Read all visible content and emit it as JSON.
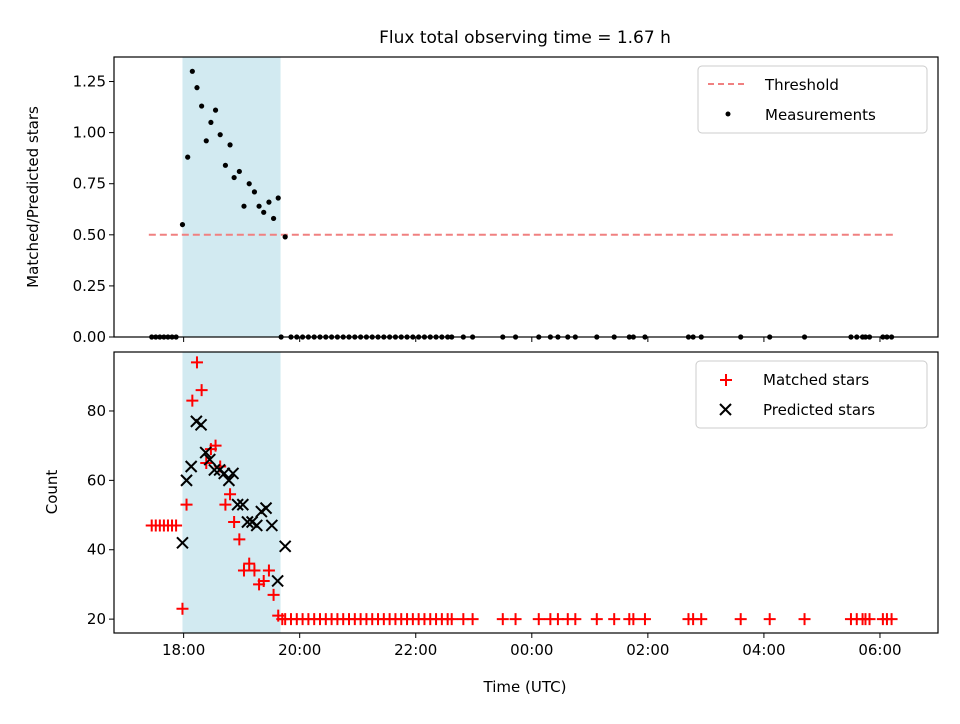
{
  "colors": {
    "threshold": "#f08080",
    "band": "#add8e6",
    "measurement": "#000000",
    "matched": "#ff0000",
    "predicted": "#000000"
  },
  "chart_data": [
    {
      "type": "scatter",
      "title": "Flux total observing time = 1.67 h",
      "xlabel": "",
      "ylabel": "Matched/Predicted stars",
      "x_unit": "hours since 00:00 UTC on the first night (values above 24 are after midnight)",
      "xlim": [
        16.8,
        31.0
      ],
      "ylim": [
        0,
        1.37
      ],
      "yticks": [
        0.0,
        0.25,
        0.5,
        0.75,
        1.0,
        1.25
      ],
      "ytick_labels": [
        "0.00",
        "0.25",
        "0.50",
        "0.75",
        "1.00",
        "1.25"
      ],
      "highlight_band": [
        17.98,
        19.67
      ],
      "legend": {
        "placement": "top-right",
        "entries": [
          "Threshold",
          "Measurements"
        ]
      },
      "series": [
        {
          "name": "Threshold",
          "kind": "dashed-line",
          "x": [
            17.4,
            30.25
          ],
          "y": [
            0.5,
            0.5
          ]
        },
        {
          "name": "Measurements",
          "kind": "dot",
          "points": [
            [
              17.45,
              0
            ],
            [
              17.52,
              0
            ],
            [
              17.59,
              0
            ],
            [
              17.66,
              0
            ],
            [
              17.73,
              0
            ],
            [
              17.8,
              0
            ],
            [
              17.87,
              0
            ],
            [
              17.98,
              0.55
            ],
            [
              18.07,
              0.88
            ],
            [
              18.15,
              1.3
            ],
            [
              18.23,
              1.22
            ],
            [
              18.31,
              1.13
            ],
            [
              18.39,
              0.96
            ],
            [
              18.47,
              1.05
            ],
            [
              18.55,
              1.11
            ],
            [
              18.63,
              0.99
            ],
            [
              18.72,
              0.84
            ],
            [
              18.8,
              0.94
            ],
            [
              18.87,
              0.78
            ],
            [
              18.96,
              0.81
            ],
            [
              19.04,
              0.64
            ],
            [
              19.13,
              0.75
            ],
            [
              19.22,
              0.71
            ],
            [
              19.3,
              0.64
            ],
            [
              19.38,
              0.61
            ],
            [
              19.47,
              0.66
            ],
            [
              19.55,
              0.58
            ],
            [
              19.63,
              0.68
            ],
            [
              19.75,
              0.49
            ],
            [
              19.68,
              0
            ],
            [
              19.85,
              0
            ],
            [
              19.95,
              0
            ],
            [
              20.05,
              0
            ],
            [
              20.15,
              0
            ],
            [
              20.25,
              0
            ],
            [
              20.35,
              0
            ],
            [
              20.45,
              0
            ],
            [
              20.55,
              0
            ],
            [
              20.65,
              0
            ],
            [
              20.75,
              0
            ],
            [
              20.85,
              0
            ],
            [
              20.95,
              0
            ],
            [
              21.05,
              0
            ],
            [
              21.15,
              0
            ],
            [
              21.25,
              0
            ],
            [
              21.35,
              0
            ],
            [
              21.45,
              0
            ],
            [
              21.55,
              0
            ],
            [
              21.65,
              0
            ],
            [
              21.75,
              0
            ],
            [
              21.85,
              0
            ],
            [
              21.95,
              0
            ],
            [
              22.05,
              0
            ],
            [
              22.15,
              0
            ],
            [
              22.25,
              0
            ],
            [
              22.35,
              0
            ],
            [
              22.45,
              0
            ],
            [
              22.55,
              0
            ],
            [
              22.62,
              0
            ],
            [
              22.82,
              0
            ],
            [
              22.98,
              0
            ],
            [
              23.5,
              0
            ],
            [
              23.72,
              0
            ],
            [
              24.12,
              0
            ],
            [
              24.32,
              0
            ],
            [
              24.45,
              0
            ],
            [
              24.62,
              0
            ],
            [
              24.75,
              0
            ],
            [
              25.12,
              0
            ],
            [
              25.42,
              0
            ],
            [
              25.68,
              0
            ],
            [
              25.75,
              0
            ],
            [
              25.95,
              0
            ],
            [
              26.7,
              0
            ],
            [
              26.78,
              0
            ],
            [
              26.92,
              0
            ],
            [
              27.6,
              0
            ],
            [
              28.1,
              0
            ],
            [
              28.7,
              0
            ],
            [
              29.5,
              0
            ],
            [
              29.6,
              0
            ],
            [
              29.7,
              0
            ],
            [
              29.75,
              0
            ],
            [
              29.82,
              0
            ],
            [
              30.05,
              0
            ],
            [
              30.12,
              0
            ],
            [
              30.2,
              0
            ]
          ]
        }
      ]
    },
    {
      "type": "scatter",
      "title": "",
      "xlabel": "Time (UTC)",
      "ylabel": "Count",
      "x_unit": "hours since 00:00 UTC on the first night (values above 24 are after midnight)",
      "xlim": [
        16.8,
        31.0
      ],
      "ylim": [
        16,
        97
      ],
      "xticks": [
        18,
        20,
        22,
        24,
        26,
        28,
        30
      ],
      "xtick_labels": [
        "18:00",
        "20:00",
        "22:00",
        "00:00",
        "02:00",
        "04:00",
        "06:00"
      ],
      "yticks": [
        20,
        40,
        60,
        80
      ],
      "ytick_labels": [
        "20",
        "40",
        "60",
        "80"
      ],
      "highlight_band": [
        17.98,
        19.67
      ],
      "legend": {
        "placement": "top-right",
        "entries": [
          "Matched stars",
          "Predicted stars"
        ]
      },
      "series": [
        {
          "name": "Matched stars",
          "marker": "plus",
          "points": [
            [
              17.45,
              47
            ],
            [
              17.52,
              47
            ],
            [
              17.59,
              47
            ],
            [
              17.66,
              47
            ],
            [
              17.73,
              47
            ],
            [
              17.8,
              47
            ],
            [
              17.87,
              47
            ],
            [
              17.98,
              23
            ],
            [
              18.05,
              53
            ],
            [
              18.15,
              83
            ],
            [
              18.23,
              94
            ],
            [
              18.31,
              86
            ],
            [
              18.39,
              65
            ],
            [
              18.47,
              69
            ],
            [
              18.55,
              70
            ],
            [
              18.63,
              64
            ],
            [
              18.72,
              53
            ],
            [
              18.8,
              56
            ],
            [
              18.87,
              48
            ],
            [
              18.96,
              43
            ],
            [
              19.04,
              34
            ],
            [
              19.13,
              36
            ],
            [
              19.22,
              34
            ],
            [
              19.3,
              30
            ],
            [
              19.38,
              31
            ],
            [
              19.47,
              34
            ],
            [
              19.55,
              27
            ],
            [
              19.63,
              21
            ],
            [
              19.7,
              20
            ],
            [
              19.75,
              20
            ],
            [
              19.85,
              20
            ],
            [
              19.95,
              20
            ],
            [
              20.05,
              20
            ],
            [
              20.15,
              20
            ],
            [
              20.25,
              20
            ],
            [
              20.35,
              20
            ],
            [
              20.45,
              20
            ],
            [
              20.55,
              20
            ],
            [
              20.65,
              20
            ],
            [
              20.75,
              20
            ],
            [
              20.85,
              20
            ],
            [
              20.95,
              20
            ],
            [
              21.05,
              20
            ],
            [
              21.15,
              20
            ],
            [
              21.25,
              20
            ],
            [
              21.35,
              20
            ],
            [
              21.45,
              20
            ],
            [
              21.55,
              20
            ],
            [
              21.65,
              20
            ],
            [
              21.75,
              20
            ],
            [
              21.85,
              20
            ],
            [
              21.95,
              20
            ],
            [
              22.05,
              20
            ],
            [
              22.15,
              20
            ],
            [
              22.25,
              20
            ],
            [
              22.35,
              20
            ],
            [
              22.45,
              20
            ],
            [
              22.55,
              20
            ],
            [
              22.62,
              20
            ],
            [
              22.82,
              20
            ],
            [
              22.98,
              20
            ],
            [
              23.5,
              20
            ],
            [
              23.72,
              20
            ],
            [
              24.12,
              20
            ],
            [
              24.32,
              20
            ],
            [
              24.45,
              20
            ],
            [
              24.62,
              20
            ],
            [
              24.75,
              20
            ],
            [
              25.12,
              20
            ],
            [
              25.42,
              20
            ],
            [
              25.68,
              20
            ],
            [
              25.75,
              20
            ],
            [
              25.95,
              20
            ],
            [
              26.7,
              20
            ],
            [
              26.78,
              20
            ],
            [
              26.92,
              20
            ],
            [
              27.6,
              20
            ],
            [
              28.1,
              20
            ],
            [
              28.7,
              20
            ],
            [
              29.5,
              20
            ],
            [
              29.6,
              20
            ],
            [
              29.7,
              20
            ],
            [
              29.75,
              20
            ],
            [
              29.82,
              20
            ],
            [
              30.05,
              20
            ],
            [
              30.12,
              20
            ],
            [
              30.2,
              20
            ]
          ]
        },
        {
          "name": "Predicted stars",
          "marker": "x",
          "points": [
            [
              17.98,
              42
            ],
            [
              18.05,
              60
            ],
            [
              18.13,
              64
            ],
            [
              18.22,
              77
            ],
            [
              18.3,
              76
            ],
            [
              18.38,
              68
            ],
            [
              18.45,
              66
            ],
            [
              18.53,
              63
            ],
            [
              18.62,
              63
            ],
            [
              18.7,
              62
            ],
            [
              18.78,
              60
            ],
            [
              18.85,
              62
            ],
            [
              18.93,
              53
            ],
            [
              19.02,
              53
            ],
            [
              19.1,
              48
            ],
            [
              19.18,
              48
            ],
            [
              19.26,
              47
            ],
            [
              19.34,
              51
            ],
            [
              19.42,
              52
            ],
            [
              19.52,
              47
            ],
            [
              19.62,
              31
            ],
            [
              19.75,
              41
            ]
          ]
        }
      ]
    }
  ]
}
